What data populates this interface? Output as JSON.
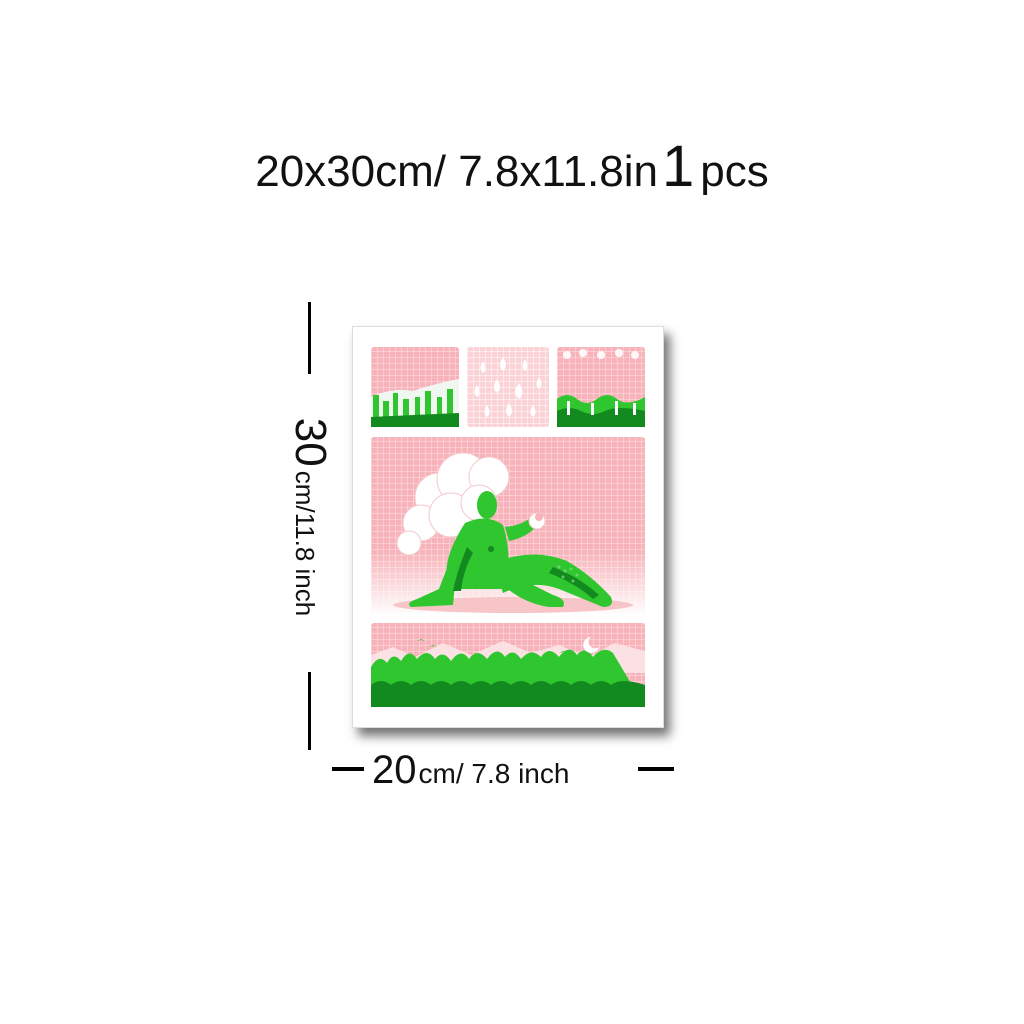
{
  "headline": {
    "size_text": "20x30cm/ 7.8x11.8in",
    "quantity_number": "1",
    "quantity_unit": "pcs"
  },
  "height_dimension": {
    "value": "30",
    "unit_text": "cm/11.8 inch"
  },
  "width_dimension": {
    "value": "20",
    "unit_text": "cm/ 7.8 inch"
  },
  "poster": {
    "subject": "green-figure-with-cloud-hair",
    "colors": {
      "pink": "#f6b2b8",
      "light_pink": "#fbd6d9",
      "green": "#2fc62f",
      "dark_green": "#138a1f",
      "white": "#ffffff"
    }
  }
}
